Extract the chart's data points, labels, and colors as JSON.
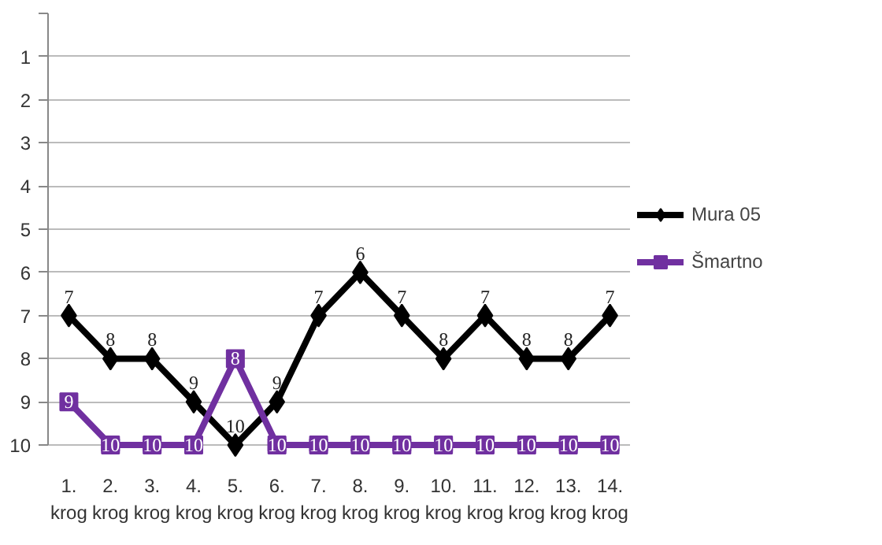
{
  "chart_data": {
    "type": "line",
    "categories": [
      "1. krog",
      "2. krog",
      "3. krog",
      "4. krog",
      "5. krog",
      "6. krog",
      "7. krog",
      "8. krog",
      "9. krog",
      "10. krog",
      "11. krog",
      "12. krog",
      "13. krog",
      "14. krog"
    ],
    "series": [
      {
        "name": "Mura 05",
        "color": "#000000",
        "marker": "diamond",
        "values": [
          7,
          8,
          8,
          9,
          10,
          9,
          7,
          6,
          7,
          8,
          7,
          8,
          8,
          7
        ]
      },
      {
        "name": "Šmartno",
        "color": "#7030a0",
        "marker": "square",
        "values": [
          9,
          10,
          10,
          10,
          8,
          10,
          10,
          10,
          10,
          10,
          10,
          10,
          10,
          10
        ]
      }
    ],
    "ylim": [
      10,
      0
    ],
    "yticks": [
      {
        "value": 0,
        "label": null
      },
      1,
      2,
      3,
      4,
      5,
      6,
      7,
      8,
      9,
      10
    ],
    "grid": "y",
    "legend": "right",
    "data_labels": true,
    "line_style": "solid"
  }
}
